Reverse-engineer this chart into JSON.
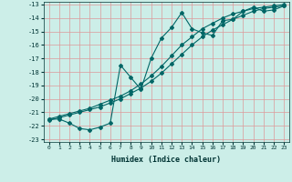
{
  "xlabel": "Humidex (Indice chaleur)",
  "bg_color": "#cceee8",
  "grid_color": "#dd9999",
  "line_color": "#006666",
  "xlim": [
    -0.5,
    23.5
  ],
  "ylim": [
    -23.2,
    -12.8
  ],
  "xticks": [
    0,
    1,
    2,
    3,
    4,
    5,
    6,
    7,
    8,
    9,
    10,
    11,
    12,
    13,
    14,
    15,
    16,
    17,
    18,
    19,
    20,
    21,
    22,
    23
  ],
  "yticks": [
    -23,
    -22,
    -21,
    -20,
    -19,
    -18,
    -17,
    -16,
    -15,
    -14,
    -13
  ],
  "line1_x": [
    0,
    1,
    2,
    3,
    4,
    5,
    6,
    7,
    8,
    9,
    10,
    11,
    12,
    13,
    14,
    15,
    16,
    17,
    18,
    19,
    20,
    21,
    22,
    23
  ],
  "line1_y": [
    -21.5,
    -21.3,
    -21.1,
    -20.9,
    -20.7,
    -20.4,
    -20.1,
    -19.8,
    -19.4,
    -18.9,
    -18.3,
    -17.6,
    -16.8,
    -16.0,
    -15.4,
    -14.8,
    -14.4,
    -14.0,
    -13.7,
    -13.5,
    -13.3,
    -13.2,
    -13.1,
    -13.0
  ],
  "line2_x": [
    0,
    1,
    2,
    3,
    4,
    5,
    6,
    7,
    8,
    9,
    10,
    11,
    12,
    13,
    14,
    15,
    16,
    17,
    18,
    19,
    20,
    21,
    22,
    23
  ],
  "line2_y": [
    -21.6,
    -21.4,
    -21.2,
    -21.0,
    -20.8,
    -20.6,
    -20.3,
    -20.0,
    -19.6,
    -19.2,
    -18.7,
    -18.1,
    -17.4,
    -16.7,
    -16.0,
    -15.4,
    -14.9,
    -14.5,
    -14.1,
    -13.8,
    -13.5,
    -13.3,
    -13.2,
    -13.1
  ],
  "line3_x": [
    0,
    1,
    2,
    3,
    4,
    5,
    6,
    7,
    8,
    9,
    10,
    11,
    12,
    13,
    14,
    15,
    16,
    17,
    18,
    19,
    20,
    21,
    22,
    23
  ],
  "line3_y": [
    -21.5,
    -21.5,
    -21.8,
    -22.2,
    -22.3,
    -22.1,
    -21.8,
    -17.5,
    -18.4,
    -19.3,
    -17.0,
    -15.5,
    -14.7,
    -13.6,
    -14.8,
    -15.1,
    -15.3,
    -14.2,
    -14.1,
    -13.5,
    -13.2,
    -13.5,
    -13.4,
    -13.1
  ]
}
